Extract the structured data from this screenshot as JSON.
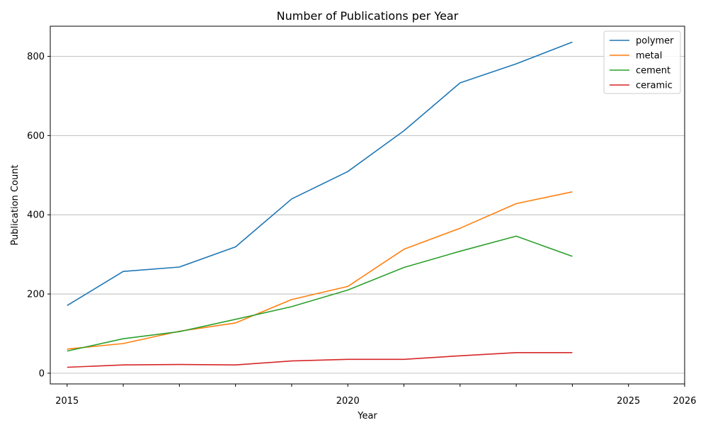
{
  "chart_data": {
    "type": "line",
    "title": "Number of Publications per Year",
    "xlabel": "Year",
    "ylabel": "Publication Count",
    "x": [
      2015,
      2016,
      2017,
      2018,
      2019,
      2020,
      2021,
      2022,
      2023,
      2024
    ],
    "xlim": [
      2014.7,
      2026
    ],
    "ylim": [
      -27,
      876
    ],
    "x_ticks": [
      2015,
      2016,
      2017,
      2018,
      2019,
      2020,
      2021,
      2022,
      2023,
      2024,
      2025,
      2026
    ],
    "x_tick_labels": [
      "2015",
      "",
      "",
      "",
      "",
      "2020",
      "",
      "",
      "",
      "",
      "2025",
      "2026"
    ],
    "y_ticks": [
      0,
      200,
      400,
      600,
      800
    ],
    "y_tick_labels": [
      "0",
      "200",
      "400",
      "600",
      "800"
    ],
    "grid": "y",
    "legend_position": "top-right",
    "series": [
      {
        "name": "polymer",
        "color": "#1f77b4",
        "values": [
          171,
          257,
          268,
          319,
          440,
          509,
          612,
          733,
          781,
          836
        ]
      },
      {
        "name": "metal",
        "color": "#ff7f0e",
        "values": [
          61,
          75,
          106,
          127,
          186,
          219,
          313,
          366,
          428,
          458
        ]
      },
      {
        "name": "cement",
        "color": "#2ca02c",
        "values": [
          56,
          87,
          105,
          136,
          168,
          210,
          267,
          308,
          346,
          295
        ]
      },
      {
        "name": "ceramic",
        "color": "#d62728",
        "values": [
          15,
          21,
          22,
          21,
          31,
          35,
          35,
          44,
          52,
          52
        ]
      }
    ]
  }
}
